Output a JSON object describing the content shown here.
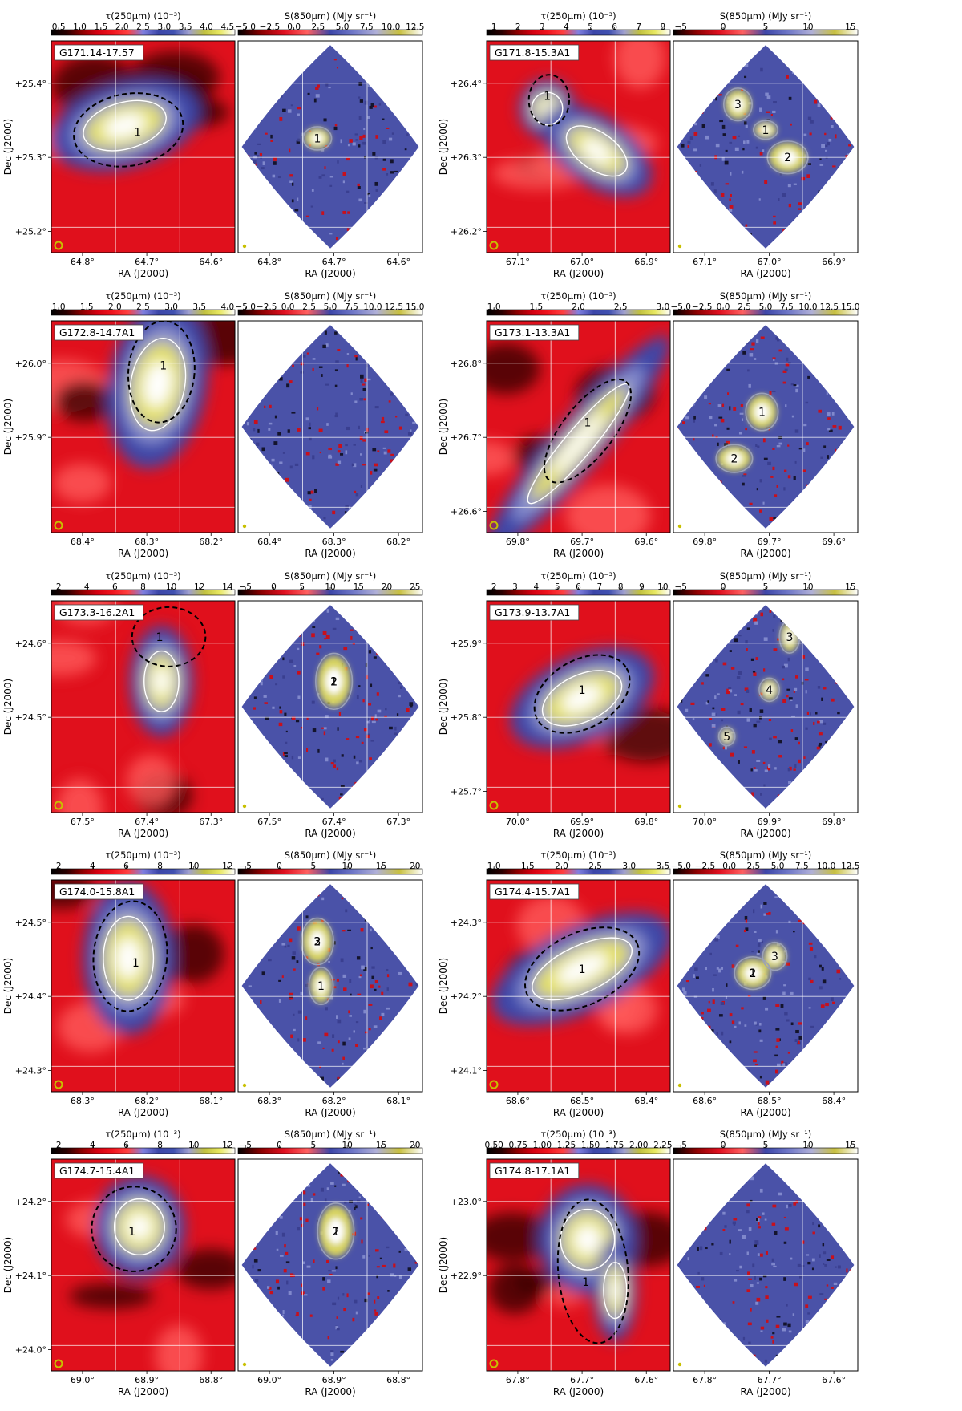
{
  "figure": {
    "labels": {
      "tau_colorbar": "τ(250μm) (10⁻³)",
      "s850_colorbar": "S(850μm) (MJy sr⁻¹)",
      "ra_axis": "RA (J2000)",
      "dec_axis": "Dec (J2000)"
    },
    "colors": {
      "tau_cmap": [
        "#000000",
        "#2a0000",
        "#8b0000",
        "#d40010",
        "#f0141e",
        "#ff4040",
        "#8080e0",
        "#3c46a8",
        "#4050b0",
        "#a0a0d0",
        "#c0c040",
        "#e8e860",
        "#ffffff"
      ],
      "s850_cmap": [
        "#000000",
        "#8b0000",
        "#e01020",
        "#ff6060",
        "#3c46a8",
        "#7078c8",
        "#b0b0d8",
        "#c8c040",
        "#ffffff"
      ],
      "clump_contour": "#ffffff",
      "core_contour": "#9aa0b8",
      "star_cyan": "#1fc8b8",
      "star_yellow": "#f0d020",
      "beam": "#c8c000"
    },
    "panels": [
      {
        "name": "G171.14-17.57",
        "tau_ticks": [
          "0.5",
          "1.0",
          "1.5",
          "2.0",
          "2.5",
          "3.0",
          "3.5",
          "4.0",
          "4.5"
        ],
        "s850_ticks": [
          "−5.0",
          "−2.5",
          "0.0",
          "2.5",
          "5.0",
          "7.5",
          "10.0",
          "12.5"
        ],
        "ra_ticks": [
          "64.8°",
          "64.7°",
          "64.6°"
        ],
        "dec_ticks": [
          "+25.4°",
          "+25.3°",
          "+25.2°"
        ],
        "tau_clump_labels": [
          "1"
        ],
        "s850_core_labels": [
          "1"
        ]
      },
      {
        "name": "G171.8-15.3A1",
        "tau_ticks": [
          "1",
          "2",
          "3",
          "4",
          "5",
          "6",
          "7",
          "8"
        ],
        "s850_ticks": [
          "−5",
          "0",
          "5",
          "10",
          "15"
        ],
        "ra_ticks": [
          "67.1°",
          "67.0°",
          "66.9°"
        ],
        "dec_ticks": [
          "+26.4°",
          "+26.3°",
          "+26.2°"
        ],
        "tau_clump_labels": [
          "1"
        ],
        "s850_core_labels": [
          "3",
          "1",
          "2"
        ]
      },
      {
        "name": "G172.8-14.7A1",
        "tau_ticks": [
          "1.0",
          "1.5",
          "2.0",
          "2.5",
          "3.0",
          "3.5",
          "4.0"
        ],
        "s850_ticks": [
          "−5.0",
          "−2.5",
          "0.0",
          "2.5",
          "5.0",
          "7.5",
          "10.0",
          "12.5",
          "15.0"
        ],
        "ra_ticks": [
          "68.4°",
          "68.3°",
          "68.2°"
        ],
        "dec_ticks": [
          "+26.0°",
          "+25.9°"
        ],
        "tau_clump_labels": [
          "1"
        ],
        "s850_core_labels": []
      },
      {
        "name": "G173.1-13.3A1",
        "tau_ticks": [
          "1.0",
          "1.5",
          "2.0",
          "2.5",
          "3.0"
        ],
        "s850_ticks": [
          "−5.0",
          "−2.5",
          "0.0",
          "2.5",
          "5.0",
          "7.5",
          "10.0",
          "12.5",
          "15.0"
        ],
        "ra_ticks": [
          "69.8°",
          "69.7°",
          "69.6°"
        ],
        "dec_ticks": [
          "+26.8°",
          "+26.7°",
          "+26.6°"
        ],
        "tau_clump_labels": [
          "1"
        ],
        "s850_core_labels": [
          "1",
          "2"
        ]
      },
      {
        "name": "G173.3-16.2A1",
        "tau_ticks": [
          "2",
          "4",
          "6",
          "8",
          "10",
          "12",
          "14"
        ],
        "s850_ticks": [
          "−5",
          "0",
          "5",
          "10",
          "15",
          "20",
          "25"
        ],
        "ra_ticks": [
          "67.5°",
          "67.4°",
          "67.3°"
        ],
        "dec_ticks": [
          "+24.6°",
          "+24.5°"
        ],
        "tau_clump_labels": [
          "1"
        ],
        "s850_core_labels": [
          "2",
          "1"
        ]
      },
      {
        "name": "G173.9-13.7A1",
        "tau_ticks": [
          "2",
          "3",
          "4",
          "5",
          "6",
          "7",
          "8",
          "9",
          "10"
        ],
        "s850_ticks": [
          "−5",
          "0",
          "5",
          "10",
          "15"
        ],
        "ra_ticks": [
          "70.0°",
          "69.9°",
          "69.8°"
        ],
        "dec_ticks": [
          "+25.9°",
          "+25.8°",
          "+25.7°"
        ],
        "tau_clump_labels": [
          "1"
        ],
        "s850_core_labels": [
          "3",
          "4",
          "5"
        ]
      },
      {
        "name": "G174.0-15.8A1",
        "tau_ticks": [
          "2",
          "4",
          "6",
          "8",
          "10",
          "12"
        ],
        "s850_ticks": [
          "−5",
          "0",
          "5",
          "10",
          "15",
          "20"
        ],
        "ra_ticks": [
          "68.3°",
          "68.2°",
          "68.1°"
        ],
        "dec_ticks": [
          "+24.5°",
          "+24.4°",
          "+24.3°"
        ],
        "tau_clump_labels": [
          "1"
        ],
        "s850_core_labels": [
          "2",
          "1",
          "3"
        ]
      },
      {
        "name": "G174.4-15.7A1",
        "tau_ticks": [
          "1.0",
          "1.5",
          "2.0",
          "2.5",
          "3.0",
          "3.5"
        ],
        "s850_ticks": [
          "−5.0",
          "−2.5",
          "0.0",
          "2.5",
          "5.0",
          "7.5",
          "10.0",
          "12.5"
        ],
        "ra_ticks": [
          "68.6°",
          "68.5°",
          "68.4°"
        ],
        "dec_ticks": [
          "+24.3°",
          "+24.2°",
          "+24.1°"
        ],
        "tau_clump_labels": [
          "1"
        ],
        "s850_core_labels": [
          "2",
          "3",
          "1"
        ]
      },
      {
        "name": "G174.7-15.4A1",
        "tau_ticks": [
          "2",
          "4",
          "6",
          "8",
          "10",
          "12"
        ],
        "s850_ticks": [
          "−5",
          "0",
          "5",
          "10",
          "15",
          "20"
        ],
        "ra_ticks": [
          "69.0°",
          "68.9°",
          "68.8°"
        ],
        "dec_ticks": [
          "+24.2°",
          "+24.1°",
          "+24.0°"
        ],
        "tau_clump_labels": [
          "1"
        ],
        "s850_core_labels": [
          "2",
          "1"
        ]
      },
      {
        "name": "G174.8-17.1A1",
        "tau_ticks": [
          "0.50",
          "0.75",
          "1.00",
          "1.25",
          "1.50",
          "1.75",
          "2.00",
          "2.25"
        ],
        "s850_ticks": [
          "−5",
          "0",
          "5",
          "10",
          "15"
        ],
        "ra_ticks": [
          "67.8°",
          "67.7°",
          "67.6°"
        ],
        "dec_ticks": [
          "+23.0°",
          "+22.9°"
        ],
        "tau_clump_labels": [
          "1"
        ],
        "s850_core_labels": []
      }
    ]
  }
}
